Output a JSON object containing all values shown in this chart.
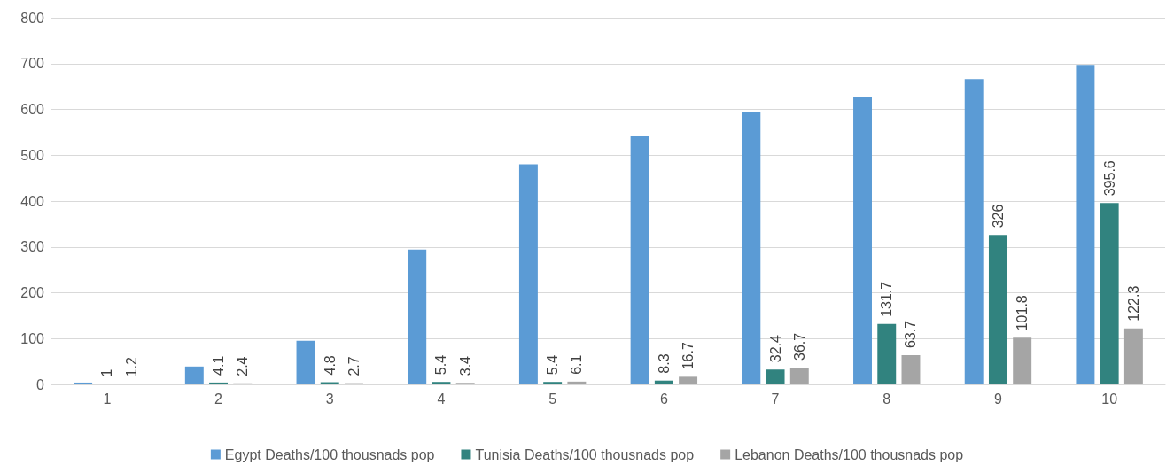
{
  "chart_data": {
    "type": "bar",
    "categories": [
      "1",
      "2",
      "3",
      "4",
      "5",
      "6",
      "7",
      "8",
      "9",
      "10"
    ],
    "series": [
      {
        "name": "Egypt Deaths/100 thousnads pop",
        "color": "#5b9bd5",
        "values": [
          4,
          39,
          95,
          294,
          480,
          542,
          593,
          628,
          666,
          697
        ]
      },
      {
        "name": "Tunisia Deaths/100 thousnads pop",
        "color": "#31837f",
        "values": [
          1,
          4.1,
          4.8,
          5.4,
          5.4,
          8.3,
          32.4,
          131.7,
          326,
          395.6
        ],
        "value_labels": [
          "1",
          "4.1",
          "4.8",
          "5.4",
          "5.4",
          "8.3",
          "32.4",
          "131.7",
          "326",
          "395.6"
        ]
      },
      {
        "name": "Lebanon Deaths/100 thousnads pop",
        "color": "#a5a5a5",
        "values": [
          1.2,
          2.4,
          2.7,
          3.4,
          6.1,
          16.7,
          36.7,
          63.7,
          101.8,
          122.3
        ],
        "value_labels": [
          "1.2",
          "2.4",
          "2.7",
          "3.4",
          "6.1",
          "16.7",
          "36.7",
          "63.7",
          "101.8",
          "122.3"
        ]
      }
    ],
    "ylim": [
      0,
      800
    ],
    "yticks": [
      0,
      100,
      200,
      300,
      400,
      500,
      600,
      700,
      800
    ],
    "grid": "y",
    "legend": "bottom"
  }
}
